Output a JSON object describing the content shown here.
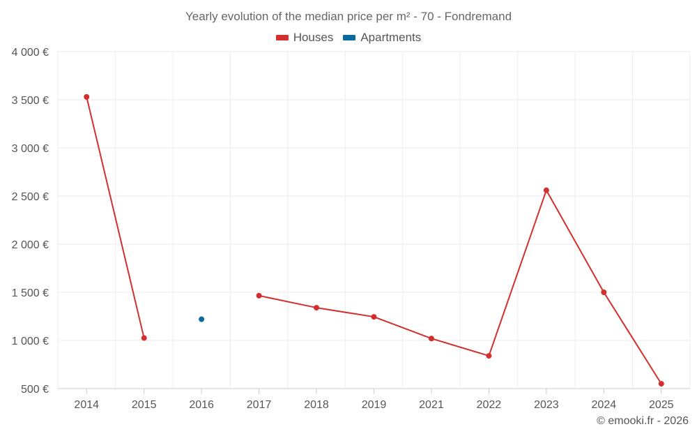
{
  "chart_data": {
    "type": "line",
    "title": "Yearly evolution of the median price per m² - 70 - Fondremand",
    "categories": [
      "2014",
      "2015",
      "2016",
      "2017",
      "2018",
      "2019",
      "2021",
      "2022",
      "2023",
      "2024",
      "2025"
    ],
    "series": [
      {
        "name": "Houses",
        "color": "#d32f2f",
        "values": [
          3530,
          1025,
          null,
          1465,
          1340,
          1245,
          1020,
          840,
          2560,
          1500,
          550
        ]
      },
      {
        "name": "Apartments",
        "color": "#0b6a9c",
        "values": [
          null,
          null,
          1220,
          null,
          null,
          null,
          null,
          null,
          null,
          null,
          null
        ]
      }
    ],
    "ylim": [
      500,
      4000
    ],
    "yticks": [
      500,
      1000,
      1500,
      2000,
      2500,
      3000,
      3500,
      4000
    ],
    "ytick_labels": [
      "500 €",
      "1 000 €",
      "1 500 €",
      "2 000 €",
      "2 500 €",
      "3 000 €",
      "3 500 €",
      "4 000 €"
    ],
    "grid": true,
    "legend": "top-center"
  },
  "credit": "© emooki.fr - 2026"
}
